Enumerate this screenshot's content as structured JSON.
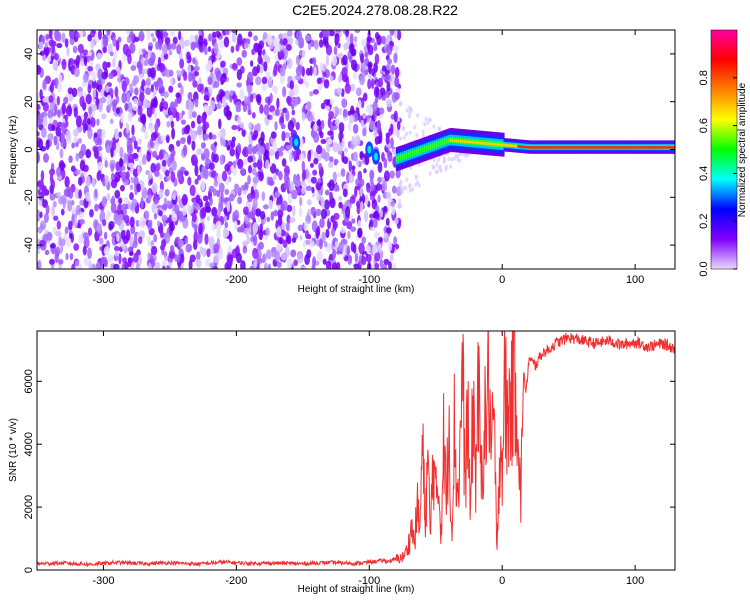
{
  "title": "C2E5.2024.278.08.28.R22",
  "chart_data": [
    {
      "type": "heatmap",
      "xlabel": "Height of straight line (km)",
      "ylabel": "Frequency (Hz)",
      "xlim": [
        -350,
        130
      ],
      "ylim": [
        -50,
        50
      ],
      "x_ticks": [
        -300,
        -200,
        -100,
        0,
        100
      ],
      "y_ticks": [
        -40,
        -20,
        0,
        20,
        40
      ],
      "noise_region_x": [
        -350,
        -77
      ],
      "signal_band": [
        {
          "x": -160,
          "y": 3
        },
        {
          "x": -100,
          "y": 0
        },
        {
          "x": -80,
          "y": -4
        },
        {
          "x": -60,
          "y": 0
        },
        {
          "x": -40,
          "y": 4
        },
        {
          "x": -20,
          "y": 3
        },
        {
          "x": 0,
          "y": 2
        },
        {
          "x": 20,
          "y": 1
        },
        {
          "x": 60,
          "y": 1
        },
        {
          "x": 130,
          "y": 1
        }
      ],
      "colorbar": {
        "label": "Normalized spectral amplitude",
        "range": [
          0,
          1
        ],
        "ticks": [
          0.0,
          0.2,
          0.4,
          0.6,
          0.8
        ],
        "tick_labels": [
          "0.0",
          "0.2",
          "0.4",
          "0.6",
          "0.8"
        ],
        "colors": [
          "#e8d8ff",
          "#8000ff",
          "#0000ff",
          "#00ffff",
          "#00ff00",
          "#ffff00",
          "#ff8000",
          "#ff0000",
          "#ff00a0"
        ]
      },
      "grid": false
    },
    {
      "type": "line",
      "xlabel": "Height of straight line (km)",
      "ylabel": "SNR (10 * v/v)",
      "xlim": [
        -350,
        130
      ],
      "ylim": [
        0,
        7600
      ],
      "x_ticks": [
        -300,
        -200,
        -100,
        0,
        100
      ],
      "y_ticks": [
        0,
        2000,
        4000,
        6000
      ],
      "color": "#f03030",
      "grid": false,
      "series": [
        {
          "x": [
            -350,
            -330,
            -310,
            -290,
            -270,
            -250,
            -230,
            -210,
            -190,
            -170,
            -150,
            -130,
            -110,
            -100,
            -90,
            -85,
            -80,
            -75,
            -72,
            -70,
            -68,
            -66,
            -64,
            -62,
            -60,
            -58,
            -56,
            -54,
            -52,
            -50,
            -48,
            -46,
            -44,
            -42,
            -40,
            -38,
            -36,
            -34,
            -32,
            -30,
            -28,
            -26,
            -24,
            -22,
            -20,
            -18,
            -16,
            -14,
            -12,
            -10,
            -8,
            -6,
            -4,
            -2,
            0,
            2,
            4,
            6,
            8,
            10,
            12,
            14,
            16,
            18,
            20,
            25,
            30,
            35,
            40,
            45,
            50,
            60,
            70,
            80,
            90,
            100,
            110,
            120,
            130
          ],
          "y": [
            200,
            220,
            180,
            240,
            200,
            230,
            190,
            250,
            210,
            220,
            200,
            240,
            210,
            250,
            300,
            280,
            350,
            400,
            600,
            900,
            1400,
            800,
            2100,
            1200,
            4000,
            1500,
            3500,
            1000,
            3800,
            2200,
            2800,
            1200,
            4200,
            2000,
            5000,
            1100,
            4600,
            2400,
            3200,
            6800,
            2500,
            5300,
            1500,
            5500,
            3000,
            5900,
            2800,
            4200,
            4800,
            6200,
            3400,
            5000,
            200,
            4000,
            3600,
            5800,
            4600,
            5400,
            6000,
            6400,
            4900,
            1800,
            6300,
            5600,
            6700,
            6500,
            6900,
            7000,
            7200,
            7300,
            7400,
            7300,
            7200,
            7300,
            7150,
            7250,
            7100,
            7200,
            7050
          ]
        }
      ]
    }
  ]
}
